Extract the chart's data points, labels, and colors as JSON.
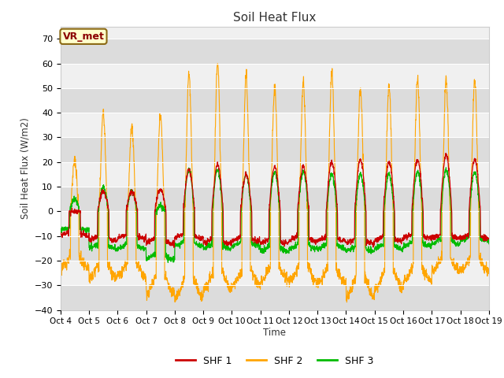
{
  "title": "Soil Heat Flux",
  "ylabel": "Soil Heat Flux (W/m2)",
  "xlabel": "Time",
  "ylim": [
    -40,
    75
  ],
  "yticks": [
    -40,
    -30,
    -20,
    -10,
    0,
    10,
    20,
    30,
    40,
    50,
    60,
    70
  ],
  "xtick_labels": [
    "Oct 4",
    "Oct 5",
    "Oct 6",
    "Oct 7",
    "Oct 8",
    "Oct 9",
    "Oct 10",
    "Oct 11",
    "Oct 12",
    "Oct 13",
    "Oct 14",
    "Oct 15",
    "Oct 16",
    "Oct 17",
    "Oct 18",
    "Oct 19"
  ],
  "colors": {
    "SHF1": "#cc0000",
    "SHF2": "#ffa500",
    "SHF3": "#00bb00"
  },
  "legend_labels": [
    "SHF 1",
    "SHF 2",
    "SHF 3"
  ],
  "fig_bg": "#ffffff",
  "plot_bg_light": "#f0f0f0",
  "plot_bg_dark": "#dcdcdc",
  "grid_color": "#ffffff",
  "annotation_text": "VR_met",
  "annotation_box_facecolor": "#ffffcc",
  "annotation_box_edgecolor": "#8b6914",
  "annotation_text_color": "#8b0000"
}
